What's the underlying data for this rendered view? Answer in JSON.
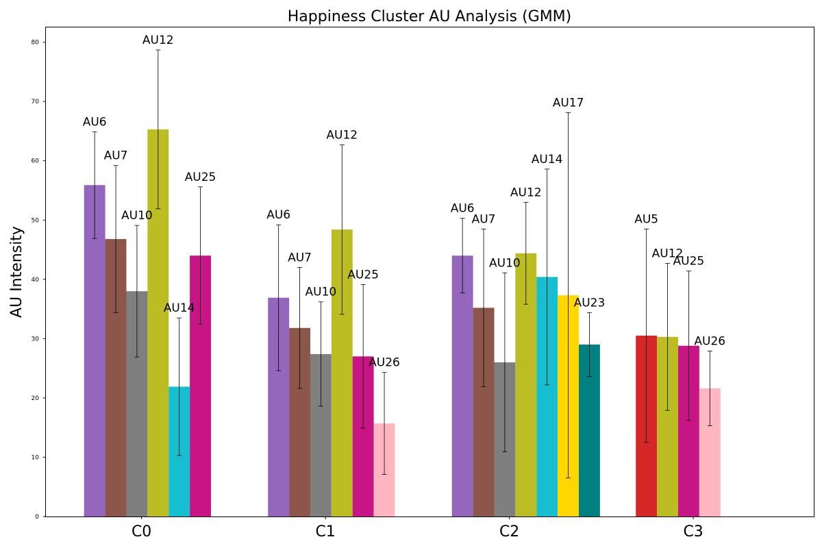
{
  "chart_data": {
    "type": "bar",
    "title": "Happiness Cluster AU Analysis (GMM)",
    "xlabel": "",
    "ylabel": "AU Intensity",
    "ylim": [
      0,
      82.5
    ],
    "yticks": [
      0,
      10,
      20,
      30,
      40,
      50,
      60,
      70,
      80
    ],
    "grid": false,
    "categories": [
      "C0",
      "C1",
      "C2",
      "C3"
    ],
    "au_colors": {
      "AU5": "#d62728",
      "AU6": "#9467bd",
      "AU7": "#8c564b",
      "AU10": "#7f7f7f",
      "AU12": "#bcbd22",
      "AU14": "#17becf",
      "AU17": "#ffd700",
      "AU23": "#008080",
      "AU25": "#c71585",
      "AU26": "#ffb6c1"
    },
    "clusters": [
      {
        "name": "C0",
        "bars": [
          {
            "au": "AU6",
            "value": 55.9,
            "err": 9.0
          },
          {
            "au": "AU7",
            "value": 46.8,
            "err": 12.4
          },
          {
            "au": "AU10",
            "value": 38.0,
            "err": 11.1
          },
          {
            "au": "AU12",
            "value": 65.3,
            "err": 13.4
          },
          {
            "au": "AU14",
            "value": 21.9,
            "err": 11.6
          },
          {
            "au": "AU25",
            "value": 44.0,
            "err": 11.6
          }
        ]
      },
      {
        "name": "C1",
        "bars": [
          {
            "au": "AU6",
            "value": 36.9,
            "err": 12.3
          },
          {
            "au": "AU7",
            "value": 31.8,
            "err": 10.2
          },
          {
            "au": "AU10",
            "value": 27.4,
            "err": 8.8
          },
          {
            "au": "AU12",
            "value": 48.4,
            "err": 14.3
          },
          {
            "au": "AU25",
            "value": 27.0,
            "err": 12.1
          },
          {
            "au": "AU26",
            "value": 15.7,
            "err": 8.6
          }
        ]
      },
      {
        "name": "C2",
        "bars": [
          {
            "au": "AU6",
            "value": 44.0,
            "err": 6.3
          },
          {
            "au": "AU7",
            "value": 35.2,
            "err": 13.3
          },
          {
            "au": "AU10",
            "value": 26.0,
            "err": 15.1
          },
          {
            "au": "AU12",
            "value": 44.4,
            "err": 8.6
          },
          {
            "au": "AU14",
            "value": 40.4,
            "err": 18.2
          },
          {
            "au": "AU17",
            "value": 37.3,
            "err": 30.8
          },
          {
            "au": "AU23",
            "value": 29.0,
            "err": 5.4
          }
        ]
      },
      {
        "name": "C3",
        "bars": [
          {
            "au": "AU5",
            "value": 30.5,
            "err": 18.0
          },
          {
            "au": "AU12",
            "value": 30.3,
            "err": 12.4
          },
          {
            "au": "AU25",
            "value": 28.8,
            "err": 12.6
          },
          {
            "au": "AU26",
            "value": 21.6,
            "err": 6.3
          }
        ]
      }
    ]
  }
}
